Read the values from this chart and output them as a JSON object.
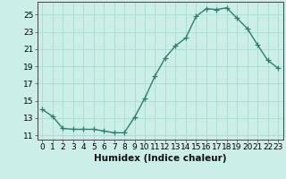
{
  "x": [
    0,
    1,
    2,
    3,
    4,
    5,
    6,
    7,
    8,
    9,
    10,
    11,
    12,
    13,
    14,
    15,
    16,
    17,
    18,
    19,
    20,
    21,
    22,
    23
  ],
  "y": [
    14.0,
    13.2,
    11.8,
    11.7,
    11.7,
    11.7,
    11.5,
    11.3,
    11.3,
    13.1,
    15.3,
    17.9,
    20.0,
    21.4,
    22.3,
    24.8,
    25.7,
    25.6,
    25.8,
    24.6,
    23.4,
    21.5,
    19.7,
    18.8
  ],
  "xlabel": "Humidex (Indice chaleur)",
  "xlim": [
    -0.5,
    23.5
  ],
  "ylim": [
    10.5,
    26.5
  ],
  "yticks": [
    11,
    13,
    15,
    17,
    19,
    21,
    23,
    25
  ],
  "xticks": [
    0,
    1,
    2,
    3,
    4,
    5,
    6,
    7,
    8,
    9,
    10,
    11,
    12,
    13,
    14,
    15,
    16,
    17,
    18,
    19,
    20,
    21,
    22,
    23
  ],
  "line_color": "#2e7d6e",
  "marker": "+",
  "marker_size": 4,
  "bg_color": "#cceee8",
  "grid_color": "#aaddcc",
  "tick_label_fontsize": 6.5,
  "xlabel_fontsize": 7.5,
  "line_width": 1.0
}
